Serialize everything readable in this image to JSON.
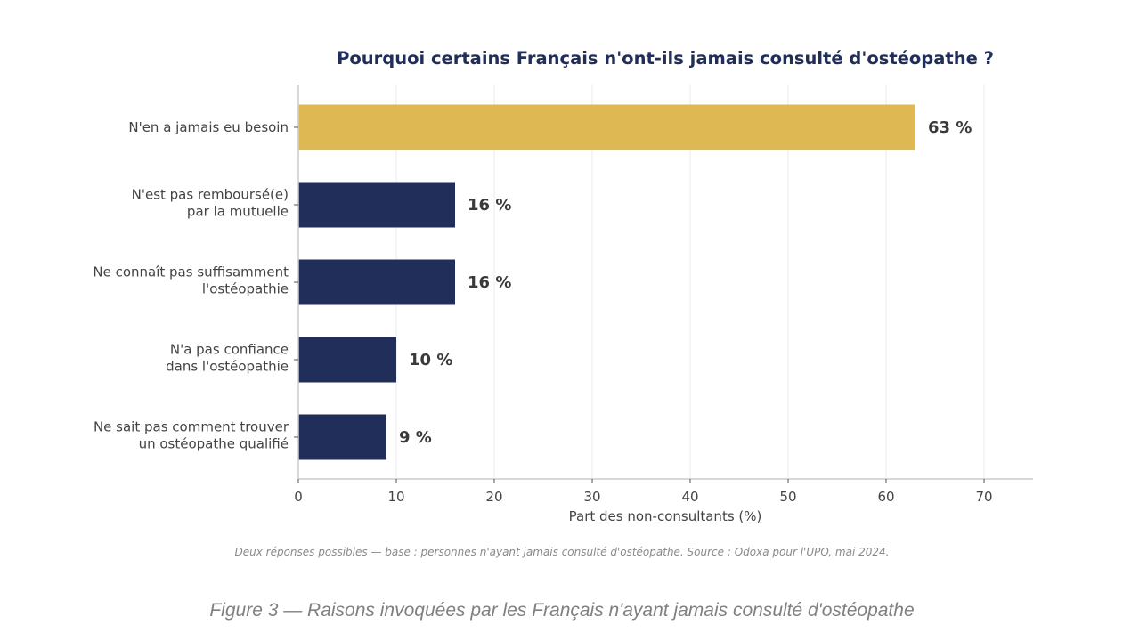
{
  "chart_data": {
    "type": "bar",
    "orientation": "horizontal",
    "title": "Pourquoi certains Français n'ont-ils jamais consulté d'ostéopathe ?",
    "categories": [
      [
        "N'en a jamais eu besoin"
      ],
      [
        "N'est pas remboursé(e)",
        "par la mutuelle"
      ],
      [
        "Ne connaît pas suffisamment",
        "l'ostéopathie"
      ],
      [
        "N'a pas confiance",
        "dans l'ostéopathie"
      ],
      [
        "Ne sait pas comment trouver",
        "un ostéopathe qualifié"
      ]
    ],
    "values": [
      63,
      16,
      16,
      10,
      9
    ],
    "value_labels": [
      "63 %",
      "16 %",
      "16 %",
      "10 %",
      "9 %"
    ],
    "highlight_index": 0,
    "xlabel": "Part des non-consultants (%)",
    "ylabel": "",
    "xlim": [
      0,
      75
    ],
    "xticks": [
      0,
      10,
      20,
      30,
      40,
      50,
      60,
      70
    ],
    "grid": "vertical",
    "legend": "none",
    "colors": {
      "highlight": "#DDB853",
      "default": "#222E5A",
      "title": "#222E5A",
      "grid": "#EBEBEB",
      "axis": "#CCCCCC"
    },
    "note": "Deux réponses possibles — base : personnes n'ayant jamais consulté d'ostéopathe.  Source : Odoxa pour l'UPO, mai 2024."
  },
  "caption": "Figure 3 — Raisons invoquées par les Français n'ayant jamais consulté d'ostéopathe"
}
